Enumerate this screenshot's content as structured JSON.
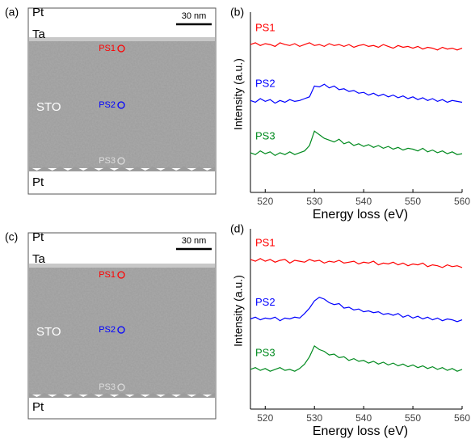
{
  "images": [
    {
      "label": "(a)",
      "scale_bar": "30 nm",
      "layers": [
        "Pt",
        "Ta",
        "STO",
        "Pt"
      ],
      "markers": [
        "PS1",
        "PS2",
        "PS3"
      ]
    },
    {
      "label": "(c)",
      "scale_bar": "30 nm",
      "layers": [
        "Pt",
        "Ta",
        "STO",
        "Pt"
      ],
      "markers": [
        "PS1",
        "PS2",
        "PS3"
      ]
    }
  ],
  "chart_data": [
    {
      "type": "line",
      "label": "(b)",
      "xlabel": "Energy loss (eV)",
      "ylabel": "Intensity (a.u.)",
      "xlim": [
        517,
        560
      ],
      "xticks": [
        520,
        530,
        540,
        550,
        560
      ],
      "ylim": [
        0,
        10
      ],
      "x": [
        517,
        518,
        519,
        520,
        521,
        522,
        523,
        524,
        525,
        526,
        527,
        528,
        529,
        530,
        531,
        532,
        533,
        534,
        535,
        536,
        537,
        538,
        539,
        540,
        541,
        542,
        543,
        544,
        545,
        546,
        547,
        548,
        549,
        550,
        551,
        552,
        553,
        554,
        555,
        556,
        557,
        558,
        559,
        560
      ],
      "series": [
        {
          "name": "PS1",
          "color": "#ff0000",
          "values": [
            8.2,
            8.3,
            8.15,
            8.25,
            8.2,
            8.1,
            8.3,
            8.2,
            8.15,
            8.25,
            8.1,
            8.2,
            8.3,
            8.15,
            8.2,
            8.1,
            8.25,
            8.15,
            8.2,
            8.1,
            8.2,
            8.05,
            8.15,
            8.2,
            8.1,
            8.15,
            8.05,
            8.2,
            8.1,
            8.0,
            8.15,
            8.05,
            8.1,
            8.0,
            8.1,
            7.95,
            8.05,
            8.0,
            7.9,
            8.05,
            7.95,
            8.0,
            7.9,
            8.0
          ]
        },
        {
          "name": "PS2",
          "color": "#0000ff",
          "values": [
            5.1,
            5.0,
            5.2,
            5.05,
            5.15,
            4.95,
            5.1,
            5.0,
            5.15,
            5.05,
            5.1,
            5.2,
            5.3,
            5.9,
            5.85,
            6.0,
            5.8,
            5.9,
            5.7,
            5.75,
            5.6,
            5.65,
            5.5,
            5.55,
            5.4,
            5.5,
            5.35,
            5.45,
            5.3,
            5.4,
            5.25,
            5.35,
            5.2,
            5.3,
            5.15,
            5.25,
            5.1,
            5.2,
            5.05,
            5.15,
            5.0,
            5.1,
            5.05,
            5.0
          ]
        },
        {
          "name": "PS3",
          "color": "#008a1e",
          "values": [
            2.2,
            2.1,
            2.3,
            2.15,
            2.25,
            2.05,
            2.2,
            2.1,
            2.25,
            2.1,
            2.2,
            2.3,
            2.6,
            3.4,
            3.2,
            3.0,
            2.9,
            2.8,
            2.95,
            2.7,
            2.8,
            2.6,
            2.7,
            2.55,
            2.65,
            2.5,
            2.6,
            2.45,
            2.55,
            2.4,
            2.5,
            2.35,
            2.45,
            2.4,
            2.3,
            2.45,
            2.25,
            2.35,
            2.2,
            2.3,
            2.15,
            2.25,
            2.1,
            2.15
          ]
        }
      ]
    },
    {
      "type": "line",
      "label": "(d)",
      "xlabel": "Energy loss (eV)",
      "ylabel": "Intensity (a.u.)",
      "xlim": [
        517,
        560
      ],
      "xticks": [
        520,
        530,
        540,
        550,
        560
      ],
      "ylim": [
        0,
        10
      ],
      "x": [
        517,
        518,
        519,
        520,
        521,
        522,
        523,
        524,
        525,
        526,
        527,
        528,
        529,
        530,
        531,
        532,
        533,
        534,
        535,
        536,
        537,
        538,
        539,
        540,
        541,
        542,
        543,
        544,
        545,
        546,
        547,
        548,
        549,
        550,
        551,
        552,
        553,
        554,
        555,
        556,
        557,
        558,
        559,
        560
      ],
      "series": [
        {
          "name": "PS1",
          "color": "#ff0000",
          "values": [
            8.3,
            8.2,
            8.35,
            8.2,
            8.3,
            8.15,
            8.25,
            8.3,
            8.1,
            8.25,
            8.2,
            8.15,
            8.3,
            8.2,
            8.25,
            8.1,
            8.2,
            8.15,
            8.25,
            8.1,
            8.15,
            8.2,
            8.05,
            8.15,
            8.1,
            8.2,
            8.0,
            8.1,
            8.05,
            8.15,
            8.0,
            8.1,
            7.95,
            8.05,
            8.0,
            8.1,
            7.9,
            8.0,
            7.95,
            7.85,
            8.0,
            7.9,
            7.95,
            7.85
          ]
        },
        {
          "name": "PS2",
          "color": "#0000ff",
          "values": [
            5.0,
            5.1,
            4.95,
            5.05,
            5.0,
            5.1,
            4.9,
            5.05,
            5.0,
            5.1,
            5.05,
            5.3,
            5.6,
            6.0,
            6.2,
            6.1,
            5.9,
            5.8,
            5.85,
            5.6,
            5.65,
            5.5,
            5.55,
            5.4,
            5.45,
            5.35,
            5.4,
            5.25,
            5.3,
            5.2,
            5.3,
            5.1,
            5.2,
            5.05,
            5.15,
            5.0,
            5.1,
            4.95,
            5.05,
            4.9,
            5.0,
            4.95,
            4.85,
            4.95
          ]
        },
        {
          "name": "PS3",
          "color": "#008a1e",
          "values": [
            2.2,
            2.3,
            2.15,
            2.25,
            2.1,
            2.2,
            2.3,
            2.15,
            2.2,
            2.1,
            2.25,
            2.5,
            2.9,
            3.5,
            3.3,
            3.2,
            3.0,
            3.05,
            2.85,
            2.9,
            2.7,
            2.8,
            2.65,
            2.7,
            2.55,
            2.65,
            2.5,
            2.6,
            2.45,
            2.55,
            2.4,
            2.5,
            2.35,
            2.45,
            2.3,
            2.4,
            2.25,
            2.35,
            2.2,
            2.3,
            2.15,
            2.25,
            2.1,
            2.2
          ]
        }
      ]
    }
  ]
}
